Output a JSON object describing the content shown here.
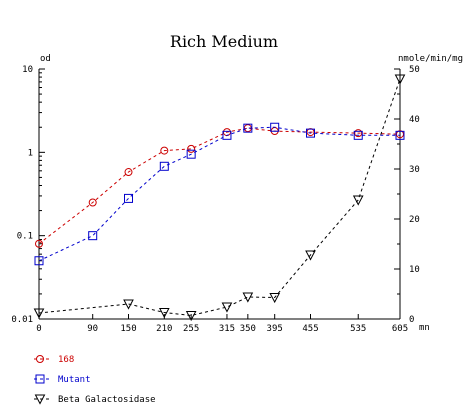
{
  "chart_data": {
    "type": "line",
    "title": "Rich Medium",
    "left_axis": {
      "unit_label": "od",
      "scale": "log",
      "ylim": [
        0.01,
        10
      ],
      "ticks": [
        0.01,
        0.1,
        1,
        10
      ],
      "tick_labels": [
        "0.01",
        "0.1",
        "1",
        "10"
      ]
    },
    "right_axis": {
      "unit_label": "nmole/min/mg",
      "scale": "linear",
      "ylim": [
        0,
        50
      ],
      "ticks": [
        0,
        10,
        20,
        30,
        40,
        50
      ],
      "tick_labels": [
        "0",
        "10",
        "20",
        "30",
        "40",
        "50"
      ]
    },
    "x_axis": {
      "unit_label": "mn",
      "xlim": [
        0,
        605
      ],
      "ticks": [
        0,
        90,
        150,
        210,
        255,
        315,
        350,
        395,
        455,
        535,
        605
      ],
      "tick_labels": [
        "0",
        "90",
        "150",
        "210",
        "255",
        "315",
        "350",
        "395",
        "455",
        "535",
        "605"
      ]
    },
    "grid": false,
    "legend_position": "bottom-left",
    "series": [
      {
        "name": "168",
        "axis": "left",
        "color": "#cc0000",
        "marker": "circle",
        "x": [
          0,
          90,
          150,
          210,
          255,
          315,
          350,
          395,
          455,
          535,
          605
        ],
        "y": [
          0.08,
          0.25,
          0.58,
          1.05,
          1.1,
          1.75,
          1.95,
          1.8,
          1.75,
          1.7,
          1.65
        ]
      },
      {
        "name": "Mutant",
        "axis": "left",
        "color": "#0000cc",
        "marker": "square",
        "x": [
          0,
          90,
          150,
          210,
          255,
          315,
          350,
          395,
          455,
          535,
          605
        ],
        "y": [
          0.05,
          0.1,
          0.28,
          0.68,
          0.95,
          1.6,
          1.95,
          2.0,
          1.7,
          1.6,
          1.6
        ]
      },
      {
        "name": "Beta Galactosidase",
        "axis": "right",
        "color": "#000000",
        "marker": "triangle-down",
        "x": [
          0,
          150,
          210,
          255,
          315,
          350,
          395,
          455,
          535,
          605
        ],
        "y": [
          1.2,
          3,
          1.3,
          0.7,
          2.4,
          4.4,
          4.3,
          12.8,
          23.8,
          48
        ]
      }
    ]
  }
}
